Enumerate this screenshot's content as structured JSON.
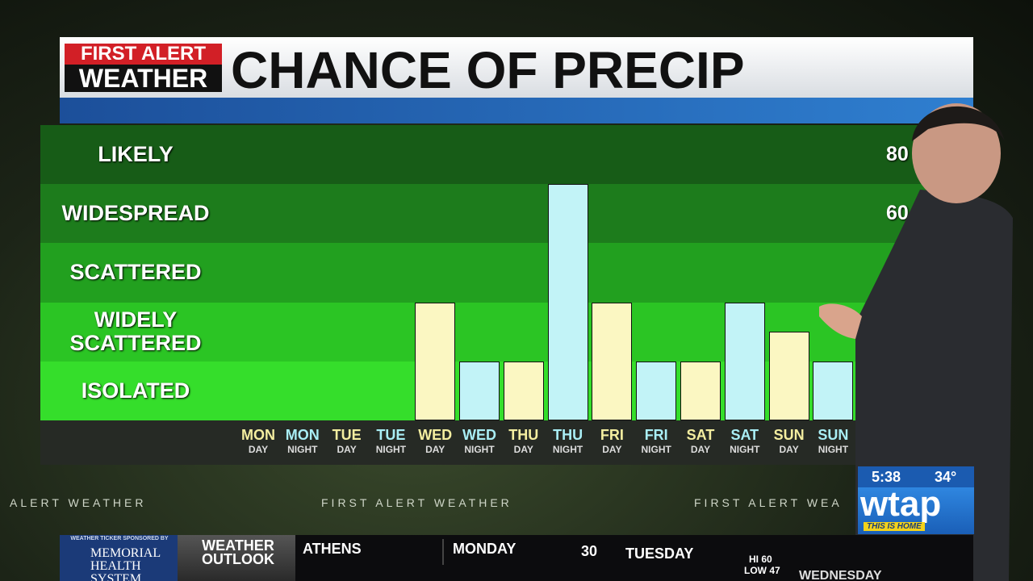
{
  "header": {
    "brand_top": "FIRST ALERT",
    "brand_bottom": "WEATHER",
    "title": "CHANCE OF PRECIP"
  },
  "chart_data": {
    "type": "bar",
    "categories": [
      "MON",
      "MON",
      "TUE",
      "TUE",
      "WED",
      "WED",
      "THU",
      "THU",
      "FRI",
      "FRI",
      "SAT",
      "SAT",
      "SUN",
      "SUN"
    ],
    "subcategories": [
      "DAY",
      "NIGHT",
      "DAY",
      "NIGHT",
      "DAY",
      "NIGHT",
      "DAY",
      "NIGHT",
      "DAY",
      "NIGHT",
      "DAY",
      "NIGHT",
      "DAY",
      "NIGHT"
    ],
    "values": [
      0,
      0,
      0,
      0,
      40,
      20,
      20,
      80,
      40,
      20,
      20,
      40,
      30,
      20
    ],
    "colors": [
      "#fbf7c2",
      "#c2f3f7",
      "#fbf7c2",
      "#c2f3f7",
      "#fbf7c2",
      "#c2f3f7",
      "#fbf7c2",
      "#c2f3f7",
      "#fbf7c2",
      "#c2f3f7",
      "#fbf7c2",
      "#c2f3f7",
      "#fbf7c2",
      "#c2f3f7"
    ],
    "label_colors": [
      "#f4eea0",
      "#a9eef5",
      "#f4eea0",
      "#a9eef5",
      "#f4eea0",
      "#a9eef5",
      "#f4eea0",
      "#a9eef5",
      "#f4eea0",
      "#a9eef5",
      "#f4eea0",
      "#a9eef5",
      "#f4eea0",
      "#a9eef5"
    ],
    "ylim": [
      0,
      100
    ],
    "bands": [
      "ISOLATED",
      "WIDELY SCATTERED",
      "SCATTERED",
      "WIDESPREAD",
      "LIKELY"
    ],
    "band_colors": [
      "#35de2b",
      "#2bc524",
      "#22a01f",
      "#1d7c1c",
      "#175c17"
    ],
    "band_ranges": [
      null,
      null,
      null,
      "60-",
      "80"
    ]
  },
  "crawl": [
    "ALERT WEATHER",
    "FIRST ALERT WEATHER",
    "FIRST ALERT WEA"
  ],
  "bug": {
    "time": "5:38",
    "temp": "34°",
    "logo": "wtap",
    "slogan": "THIS IS HOME"
  },
  "ticker": {
    "sponsor_line": "WEATHER TICKER SPONSORED BY",
    "sponsor": "MEMORIAL HEALTH SYSTEM",
    "section": "WEATHER OUTLOOK",
    "city": "ATHENS",
    "day1": "MONDAY",
    "day1_value": "30",
    "day2": "TUESDAY",
    "day2_hi": "HI 60",
    "day2_low": "LOW 47",
    "day3": "WEDNESDAY"
  }
}
